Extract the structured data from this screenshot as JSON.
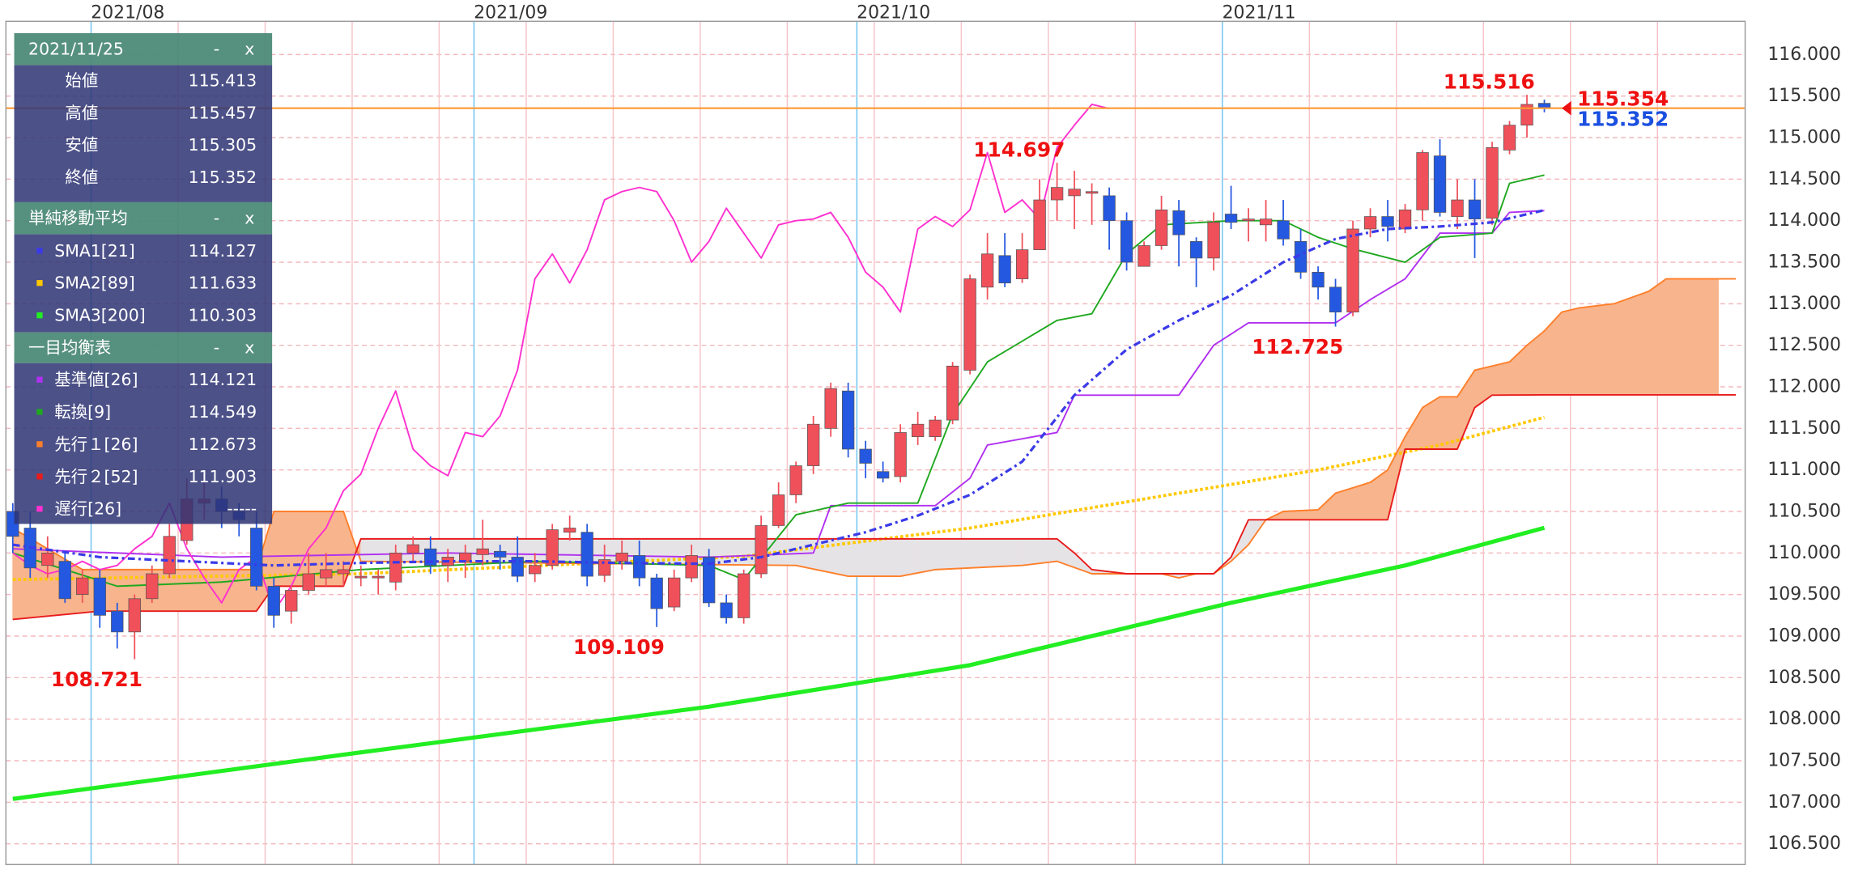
{
  "chart_data": {
    "type": "candlestick",
    "categories": [
      null,
      null,
      null,
      null,
      null,
      "2021/08",
      null,
      null,
      null,
      null,
      null,
      null,
      null,
      null,
      null,
      null,
      null,
      null,
      null,
      null,
      null,
      null,
      null,
      null,
      null,
      null,
      null,
      "2021/09",
      null,
      null,
      null,
      null,
      null,
      null,
      null,
      null,
      null,
      null,
      null,
      null,
      null,
      null,
      null,
      null,
      null,
      null,
      null,
      null,
      null,
      "2021/10",
      null,
      null,
      null,
      null,
      null,
      null,
      null,
      null,
      null,
      null,
      null,
      null,
      null,
      null,
      null,
      null,
      null,
      null,
      null,
      null,
      "2021/11",
      null,
      null,
      null,
      null,
      null,
      null,
      null,
      null,
      null,
      null,
      null,
      null,
      null,
      null,
      null,
      null,
      null,
      null,
      null,
      null,
      null,
      null,
      null,
      null,
      null,
      null,
      null,
      null
    ],
    "ylim": [
      106.25,
      116.4
    ],
    "yticks": [
      {
        "value": 106.5,
        "label": "106.500"
      },
      {
        "value": 107,
        "label": "107.000"
      },
      {
        "value": 107.5,
        "label": "107.500"
      },
      {
        "value": 108,
        "label": "108.000"
      },
      {
        "value": 108.5,
        "label": "108.500"
      },
      {
        "value": 109,
        "label": "109.000"
      },
      {
        "value": 109.5,
        "label": "109.500"
      },
      {
        "value": 110,
        "label": "110.000"
      },
      {
        "value": 110.5,
        "label": "110.500"
      },
      {
        "value": 111,
        "label": "111.000"
      },
      {
        "value": 111.5,
        "label": "111.500"
      },
      {
        "value": 112,
        "label": "112.000"
      },
      {
        "value": 112.5,
        "label": "112.500"
      },
      {
        "value": 113,
        "label": "113.000"
      },
      {
        "value": 113.5,
        "label": "113.500"
      },
      {
        "value": 114,
        "label": "114.000"
      },
      {
        "value": 114.5,
        "label": "114.500"
      },
      {
        "value": 115,
        "label": "115.000"
      },
      {
        "value": 115.5,
        "label": "115.500"
      },
      {
        "value": 116,
        "label": "116.000"
      }
    ],
    "grid": true,
    "candles": {
      "up_color": "#f0505a",
      "down_color": "#2458e0",
      "open": [
        110.5,
        110.3,
        109.85,
        109.9,
        109.5,
        109.7,
        109.3,
        109.05,
        109.45,
        109.75,
        110.15,
        110.6,
        110.65,
        110.5,
        110.3,
        109.6,
        109.3,
        109.55,
        109.7,
        109.75,
        109.7,
        109.7,
        109.65,
        110.0,
        110.05,
        109.85,
        109.9,
        109.98,
        110.02,
        109.95,
        109.75,
        109.85,
        110.25,
        110.25,
        109.73,
        109.9,
        109.97,
        109.7,
        109.35,
        109.7,
        109.95,
        109.4,
        109.22,
        109.75,
        110.33,
        110.7,
        111.05,
        111.5,
        111.95,
        111.25,
        110.98,
        110.92,
        111.4,
        111.4,
        111.6,
        112.2,
        113.2,
        113.58,
        113.3,
        113.65,
        114.25,
        114.3,
        114.33,
        114.3,
        114.0,
        113.45,
        113.7,
        114.12,
        113.75,
        113.55,
        114.08,
        114.0,
        113.95,
        114.0,
        113.75,
        113.38,
        113.2,
        112.9,
        113.9,
        114.05,
        113.9,
        114.13,
        114.78,
        114.05,
        114.25,
        114.03,
        114.85,
        115.15,
        115.413
      ],
      "high": [
        110.6,
        110.5,
        110.2,
        110.0,
        109.8,
        109.8,
        109.4,
        109.5,
        109.85,
        110.35,
        110.9,
        110.9,
        110.8,
        110.6,
        110.5,
        109.7,
        109.6,
        110.0,
        110.0,
        109.9,
        109.85,
        109.8,
        110.1,
        110.2,
        110.2,
        110.05,
        110.1,
        110.4,
        110.1,
        110.2,
        110.0,
        110.35,
        110.45,
        110.35,
        110.1,
        110.15,
        110.15,
        109.75,
        109.8,
        110.1,
        110.05,
        109.5,
        109.8,
        110.45,
        110.85,
        111.1,
        111.65,
        112.05,
        112.05,
        111.35,
        111.1,
        111.55,
        111.7,
        111.65,
        112.3,
        113.35,
        113.85,
        113.85,
        113.85,
        114.5,
        114.697,
        114.6,
        114.45,
        114.4,
        114.1,
        113.75,
        114.3,
        114.25,
        113.8,
        114.1,
        114.42,
        114.15,
        114.25,
        114.25,
        113.9,
        113.45,
        113.3,
        114.0,
        114.15,
        114.25,
        114.2,
        114.85,
        114.98,
        114.5,
        114.5,
        114.95,
        115.2,
        115.516,
        115.457
      ],
      "low": [
        110.0,
        109.7,
        109.7,
        109.4,
        109.4,
        109.1,
        108.85,
        108.721,
        109.4,
        109.7,
        110.1,
        110.4,
        110.3,
        110.2,
        109.55,
        109.1,
        109.15,
        109.5,
        109.6,
        109.6,
        109.6,
        109.5,
        109.55,
        109.9,
        109.75,
        109.65,
        109.7,
        109.85,
        109.8,
        109.65,
        109.65,
        109.8,
        110.15,
        109.6,
        109.65,
        109.8,
        109.6,
        109.109,
        109.3,
        109.65,
        109.35,
        109.15,
        109.15,
        109.7,
        110.3,
        110.6,
        110.95,
        111.4,
        111.15,
        110.9,
        110.85,
        110.85,
        111.3,
        111.35,
        111.55,
        112.15,
        113.05,
        113.2,
        113.25,
        113.65,
        114.0,
        113.9,
        113.95,
        113.65,
        113.4,
        113.45,
        113.65,
        113.45,
        113.2,
        113.4,
        113.9,
        113.75,
        113.75,
        113.7,
        113.3,
        113.05,
        112.725,
        112.85,
        113.8,
        113.75,
        113.85,
        114.0,
        114.05,
        113.9,
        113.55,
        113.95,
        114.8,
        115.0,
        115.305
      ],
      "close": [
        110.2,
        109.82,
        110.0,
        109.45,
        109.7,
        109.25,
        109.05,
        109.45,
        109.75,
        110.2,
        110.65,
        110.65,
        110.5,
        110.4,
        109.6,
        109.25,
        109.55,
        109.75,
        109.8,
        109.8,
        109.72,
        109.72,
        110.0,
        110.1,
        109.85,
        109.95,
        110.0,
        110.05,
        109.95,
        109.72,
        109.85,
        110.28,
        110.3,
        109.72,
        109.92,
        110.0,
        109.7,
        109.33,
        109.7,
        109.97,
        109.4,
        109.22,
        109.75,
        110.33,
        110.7,
        111.05,
        111.55,
        111.98,
        111.25,
        111.08,
        110.9,
        111.45,
        111.55,
        111.6,
        112.25,
        113.3,
        113.6,
        113.25,
        113.65,
        114.25,
        114.4,
        114.38,
        114.35,
        114.0,
        113.5,
        113.7,
        114.13,
        113.83,
        113.55,
        113.98,
        113.98,
        114.02,
        114.02,
        113.78,
        113.38,
        113.2,
        112.9,
        113.9,
        114.05,
        113.93,
        114.13,
        114.82,
        114.1,
        114.25,
        114.02,
        114.88,
        115.15,
        115.4,
        115.352
      ]
    },
    "annotations": [
      108.721,
      109.109,
      114.697,
      112.725,
      115.516
    ],
    "annotation_color": "#ee1111",
    "current_price": 115.354,
    "current_price_color": "#ee1111",
    "current_line_color": "#ff9933",
    "close_label_color": "#1a4fe0",
    "panel_controls": [
      "-",
      "x"
    ],
    "ohlc_panel": {
      "title": "2021/11/25",
      "labels": [
        "始値",
        "高値",
        "安値",
        "終値"
      ]
    },
    "sma": {
      "title": "単純移動平均",
      "series": [
        {
          "name": "SMA1[21]",
          "color": "#3a3ae8",
          "style": "dashdot",
          "x": [
            0,
            5,
            10,
            15,
            20,
            25,
            30,
            35,
            40,
            43,
            46,
            49,
            52,
            55,
            58,
            61,
            64,
            67,
            70,
            73,
            76,
            79,
            82,
            85,
            88
          ],
          "values": [
            110.1,
            109.95,
            109.9,
            109.85,
            109.88,
            109.9,
            109.9,
            109.88,
            109.87,
            109.95,
            110.1,
            110.25,
            110.45,
            110.7,
            111.1,
            111.9,
            112.45,
            112.8,
            113.1,
            113.5,
            113.78,
            113.9,
            113.93,
            113.98,
            114.127
          ]
        },
        {
          "name": "SMA2[89]",
          "color": "#ffc800",
          "style": "dotted",
          "x": [
            0,
            20,
            42,
            55,
            65,
            75,
            82,
            88
          ],
          "values": [
            109.68,
            109.75,
            109.96,
            110.3,
            110.65,
            111.0,
            111.3,
            111.633
          ]
        },
        {
          "name": "SMA3[200]",
          "color": "#22ee22",
          "style": "thick",
          "x": [
            0,
            20,
            40,
            55,
            70,
            80,
            88
          ],
          "values": [
            107.04,
            107.6,
            108.15,
            108.65,
            109.4,
            109.85,
            110.303
          ]
        }
      ]
    },
    "ichimoku": {
      "title": "一目均衡表",
      "cloud_colors": [
        "#f8b48c",
        "#e6e3e6"
      ],
      "series": [
        {
          "name": "基準値[26]",
          "color": "#b030f0",
          "style": "solid",
          "x": [
            0,
            12,
            25,
            40,
            46,
            47,
            53,
            55,
            56,
            60,
            61,
            67,
            69,
            71,
            76,
            78,
            80,
            82,
            85,
            86,
            88
          ],
          "values": [
            110.05,
            109.95,
            110.0,
            109.95,
            110.0,
            110.57,
            110.57,
            110.9,
            111.3,
            111.45,
            111.9,
            111.9,
            112.5,
            112.77,
            112.77,
            113.05,
            113.3,
            113.85,
            113.85,
            114.1,
            114.121
          ]
        },
        {
          "name": "転換[9]",
          "color": "#1fa81f",
          "style": "solid",
          "x": [
            0,
            6,
            12,
            20,
            30,
            40,
            42,
            45,
            48,
            52,
            54,
            56,
            60,
            62,
            64,
            66,
            70,
            73,
            75,
            77,
            80,
            82,
            85,
            86,
            88
          ],
          "values": [
            110.0,
            109.6,
            109.65,
            109.8,
            109.9,
            109.85,
            109.68,
            110.46,
            110.6,
            110.6,
            111.67,
            112.3,
            112.8,
            112.88,
            113.6,
            113.95,
            114.0,
            114.0,
            113.8,
            113.66,
            113.5,
            113.8,
            113.85,
            114.45,
            114.549
          ]
        },
        {
          "name": "先行１[26]",
          "color": "#ff7f2a",
          "style": "solid",
          "x": [
            0,
            4,
            14,
            15,
            19,
            20,
            45,
            48,
            51,
            53,
            58,
            60,
            62,
            66,
            67,
            68,
            69,
            70,
            71,
            72,
            73,
            75,
            76,
            78,
            79,
            80,
            81,
            82,
            83,
            84,
            85,
            86,
            87,
            88,
            89,
            90,
            92,
            94,
            95,
            99
          ],
          "values": [
            110.3,
            109.8,
            109.8,
            110.5,
            110.5,
            109.9,
            109.85,
            109.72,
            109.72,
            109.8,
            109.85,
            109.9,
            109.75,
            109.75,
            109.7,
            109.75,
            109.75,
            109.9,
            110.1,
            110.4,
            110.5,
            110.52,
            110.72,
            110.85,
            111.0,
            111.4,
            111.75,
            111.88,
            111.88,
            112.2,
            112.25,
            112.3,
            112.5,
            112.673,
            112.9,
            112.95,
            113.0,
            113.15,
            113.3,
            113.3
          ]
        },
        {
          "name": "先行２[52]",
          "color": "#e81c1c",
          "style": "solid",
          "x": [
            0,
            5,
            14,
            15,
            19,
            20,
            60,
            61,
            62,
            64,
            69,
            70,
            71,
            79,
            80,
            83,
            84,
            85,
            88,
            99
          ],
          "values": [
            109.2,
            109.3,
            109.3,
            109.6,
            109.6,
            110.17,
            110.17,
            110.0,
            109.8,
            109.75,
            109.75,
            109.95,
            110.4,
            110.4,
            111.25,
            111.25,
            111.75,
            111.9,
            111.903,
            111.903
          ]
        },
        {
          "name": "遅行[26]",
          "color": "#ff30d0",
          "style": "solid",
          "latest_label": "-----",
          "values": [
            110.0,
            109.85,
            109.75,
            109.8,
            109.9,
            109.8,
            109.85,
            110.05,
            110.2,
            110.6,
            110.05,
            109.7,
            109.4,
            109.8,
            109.95,
            109.3,
            109.6,
            110.05,
            110.3,
            110.75,
            110.95,
            111.5,
            111.95,
            111.25,
            111.05,
            110.93,
            111.45,
            111.4,
            111.65,
            112.2,
            113.3,
            113.6,
            113.25,
            113.65,
            114.25,
            114.35,
            114.4,
            114.35,
            114.0,
            113.5,
            113.75,
            114.15,
            113.85,
            113.55,
            113.95,
            114.0,
            114.02,
            114.1,
            113.8,
            113.38,
            113.2,
            112.9,
            113.9,
            114.05,
            113.93,
            114.13,
            114.82,
            114.1,
            114.25,
            114.02,
            114.88,
            115.15,
            115.4,
            115.35
          ]
        }
      ]
    }
  }
}
